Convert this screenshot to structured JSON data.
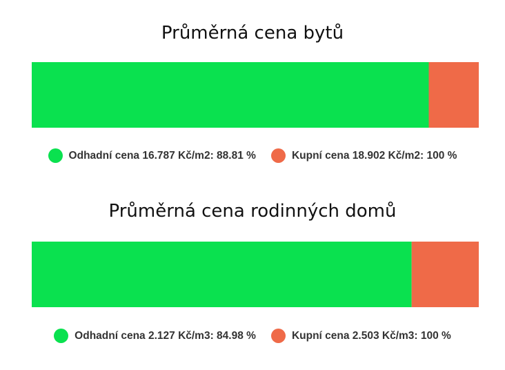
{
  "chart_data": [
    {
      "type": "bar",
      "orientation": "horizontal",
      "stacked": true,
      "title": "Průměrná cena bytů",
      "series": [
        {
          "name": "Odhadní cena 16.787 Kč/m2: 88.81 %",
          "value": 88.81,
          "color": "#0ae14f"
        },
        {
          "name": "Kupní cena 18.902 Kč/m2: 100 %",
          "value": 100,
          "color": "#ef6a48"
        }
      ],
      "xlim": [
        0,
        100
      ],
      "grid": false,
      "legend_position": "bottom"
    },
    {
      "type": "bar",
      "orientation": "horizontal",
      "stacked": true,
      "title": "Průměrná cena rodinných domů",
      "series": [
        {
          "name": "Odhadní cena 2.127 Kč/m3: 84.98 %",
          "value": 84.98,
          "color": "#0ae14f"
        },
        {
          "name": "Kupní cena 2.503 Kč/m3: 100 %",
          "value": 100,
          "color": "#ef6a48"
        }
      ],
      "xlim": [
        0,
        100
      ],
      "grid": false,
      "legend_position": "bottom"
    }
  ]
}
